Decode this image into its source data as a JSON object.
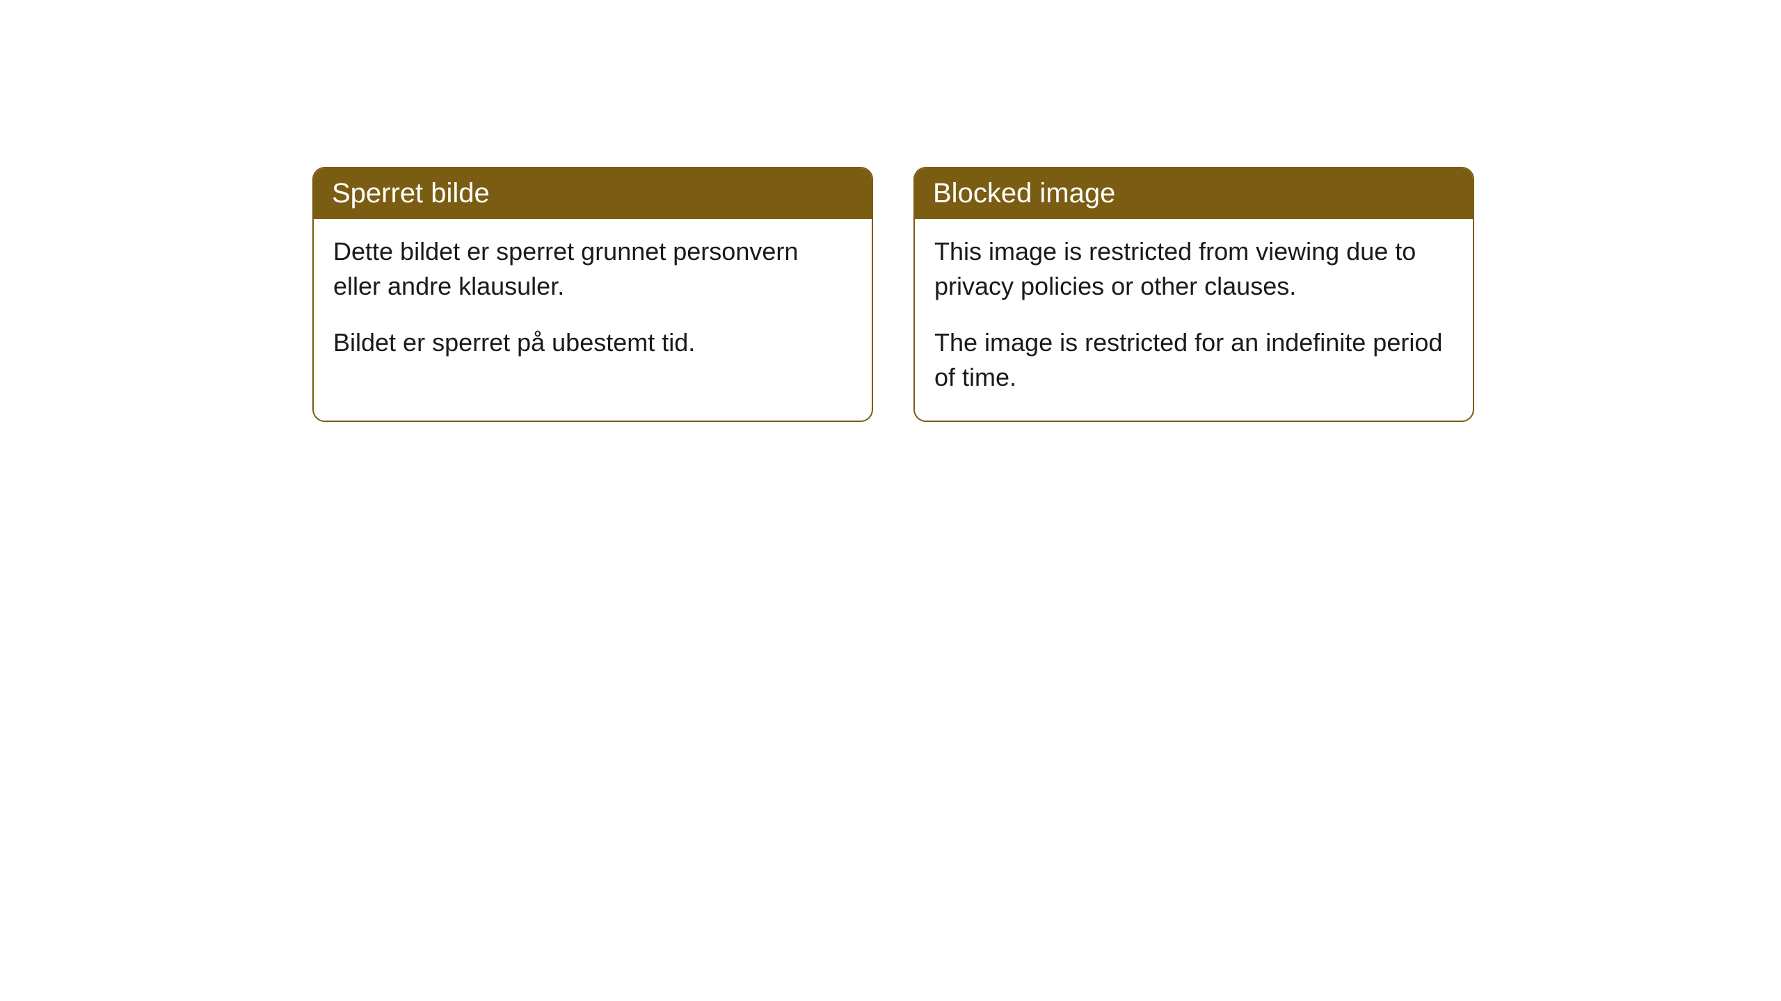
{
  "cards": [
    {
      "title": "Sperret bilde",
      "paragraph1": "Dette bildet er sperret grunnet personvern eller andre klausuler.",
      "paragraph2": "Bildet er sperret på ubestemt tid."
    },
    {
      "title": "Blocked image",
      "paragraph1": "This image is restricted from viewing due to privacy policies or other clauses.",
      "paragraph2": "The image is restricted for an indefinite period of time."
    }
  ],
  "colors": {
    "header_bg": "#7a5d12",
    "header_text": "#ffffff",
    "border": "#7a5d12",
    "body_text": "#1a1a1a",
    "card_bg": "#ffffff",
    "page_bg": "#ffffff"
  }
}
